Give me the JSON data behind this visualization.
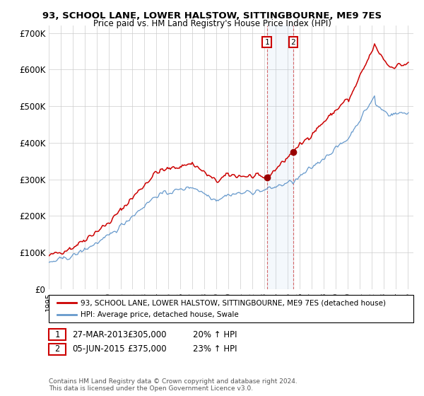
{
  "title": "93, SCHOOL LANE, LOWER HALSTOW, SITTINGBOURNE, ME9 7ES",
  "subtitle": "Price paid vs. HM Land Registry's House Price Index (HPI)",
  "legend_line1": "93, SCHOOL LANE, LOWER HALSTOW, SITTINGBOURNE, ME9 7ES (detached house)",
  "legend_line2": "HPI: Average price, detached house, Swale",
  "annotation1_date": "27-MAR-2013",
  "annotation1_price": "£305,000",
  "annotation1_hpi": "20% ↑ HPI",
  "annotation1_year": 2013.24,
  "annotation1_value": 305000,
  "annotation2_date": "05-JUN-2015",
  "annotation2_price": "£375,000",
  "annotation2_hpi": "23% ↑ HPI",
  "annotation2_year": 2015.45,
  "annotation2_value": 375000,
  "footnote": "Contains HM Land Registry data © Crown copyright and database right 2024.\nThis data is licensed under the Open Government Licence v3.0.",
  "red_color": "#cc0000",
  "blue_color": "#6699cc",
  "dot_color": "#990000",
  "background_color": "#ffffff",
  "grid_color": "#cccccc",
  "ylim": [
    0,
    720000
  ],
  "yticks": [
    0,
    100000,
    200000,
    300000,
    400000,
    500000,
    600000,
    700000
  ],
  "ytick_labels": [
    "£0",
    "£100K",
    "£200K",
    "£300K",
    "£400K",
    "£500K",
    "£600K",
    "£700K"
  ],
  "xlim_start": 1995.0,
  "xlim_end": 2025.5,
  "seed": 42
}
